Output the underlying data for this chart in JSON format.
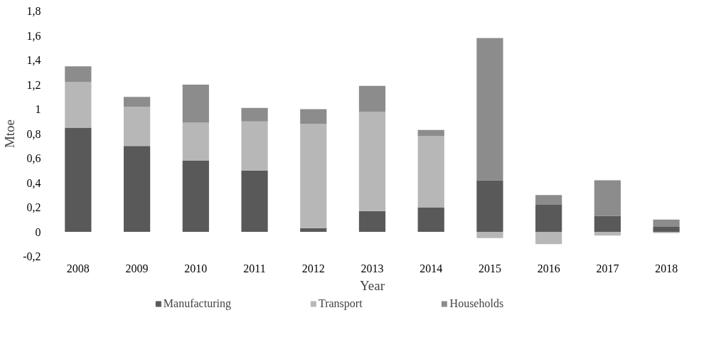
{
  "chart_data": {
    "type": "bar",
    "stacked": true,
    "xlabel": "Year",
    "ylabel": "Mtoe",
    "categories": [
      "2008",
      "2009",
      "2010",
      "2011",
      "2012",
      "2013",
      "2014",
      "2015",
      "2016",
      "2017",
      "2018"
    ],
    "series": [
      {
        "name": "Manufacturing",
        "color": "#595959",
        "values": [
          0.85,
          0.7,
          0.58,
          0.5,
          0.03,
          0.17,
          0.2,
          0.42,
          0.22,
          0.13,
          0.04
        ]
      },
      {
        "name": "Transport",
        "color": "#b7b7b7",
        "values": [
          0.37,
          0.32,
          0.31,
          0.4,
          0.85,
          0.81,
          0.58,
          -0.05,
          -0.1,
          -0.03,
          -0.01
        ]
      },
      {
        "name": "Households",
        "color": "#8c8c8c",
        "values": [
          0.13,
          0.08,
          0.31,
          0.11,
          0.12,
          0.21,
          0.05,
          1.16,
          0.08,
          0.29,
          0.06
        ]
      }
    ],
    "ylim": [
      -0.2,
      1.8
    ],
    "yticks": [
      {
        "value": -0.2,
        "label": "-0,2"
      },
      0,
      {
        "value": 0.2,
        "label": "0,2"
      },
      {
        "value": 0.4,
        "label": "0,4"
      },
      {
        "value": 0.6,
        "label": "0,6"
      },
      {
        "value": 0.8,
        "label": "0,8"
      },
      1,
      {
        "value": 1.2,
        "label": "1,2"
      },
      {
        "value": 1.4,
        "label": "1,4"
      },
      {
        "value": 1.6,
        "label": "1,6"
      },
      {
        "value": 1.8,
        "label": "1,8"
      }
    ],
    "grid": false,
    "legend": "bottom"
  }
}
